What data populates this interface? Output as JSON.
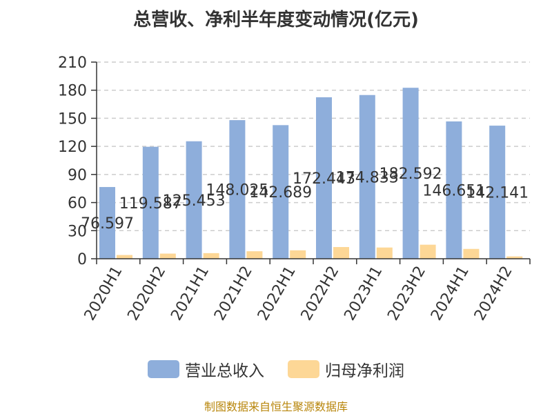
{
  "chart_data": {
    "type": "bar",
    "title": "总营收、净利半年度变动情况(亿元)",
    "categories": [
      "2020H1",
      "2020H2",
      "2021H1",
      "2021H2",
      "2022H1",
      "2022H2",
      "2023H1",
      "2023H2",
      "2024H1",
      "2024H2"
    ],
    "series": [
      {
        "name": "营业总收入",
        "color": "#8eaedb",
        "values": [
          76.597,
          119.587,
          125.453,
          148.025,
          142.689,
          172.443,
          174.833,
          182.592,
          146.651,
          142.141
        ],
        "labels": [
          "76.597",
          "119.587",
          "125.453",
          "148.025",
          "142.689",
          "172.443",
          "174.833",
          "182.592",
          "146.651",
          "142.141"
        ]
      },
      {
        "name": "归母净利润",
        "color": "#fdd796",
        "values": [
          4.0,
          5.5,
          6.0,
          8.0,
          9.0,
          12.5,
          12.0,
          15.0,
          10.5,
          2.5
        ]
      }
    ],
    "ylim": [
      0,
      210
    ],
    "yticks": [
      0,
      30,
      60,
      90,
      120,
      150,
      180,
      210
    ],
    "grid": true,
    "legend_position": "bottom"
  },
  "source": "制图数据来自恒生聚源数据库"
}
